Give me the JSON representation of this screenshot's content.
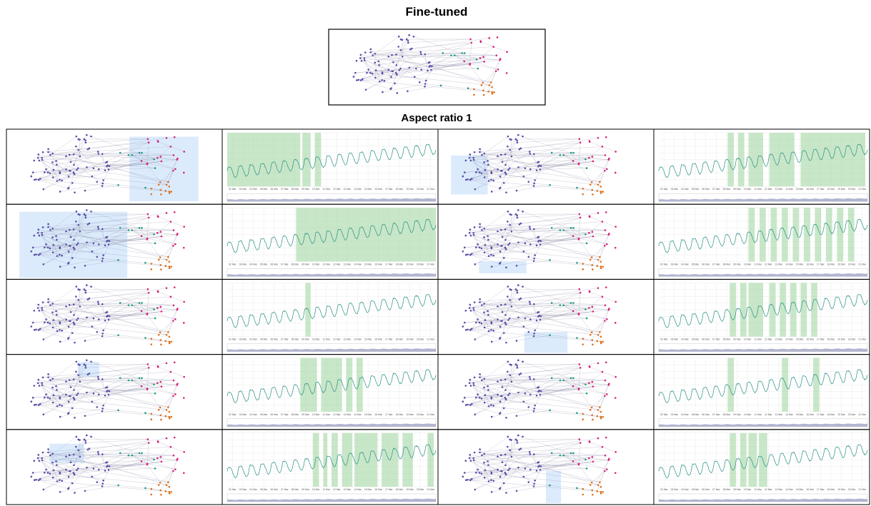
{
  "header": {
    "title": "Fine-tuned",
    "subtitle": "Aspect ratio 1"
  },
  "timeline": {
    "dates": [
      "02 Mar",
      "03 Mar",
      "04 Mar",
      "05 Mar",
      "06 Mar",
      "07 Mar",
      "08 Mar",
      "09 Mar",
      "10 Mar",
      "11 Mar",
      "12 Mar",
      "13 Mar",
      "14 Mar",
      "15 Mar",
      "16 Mar",
      "17 Mar",
      "18 Mar",
      "19 Mar",
      "20 Mar",
      "21 Mar"
    ]
  }
}
